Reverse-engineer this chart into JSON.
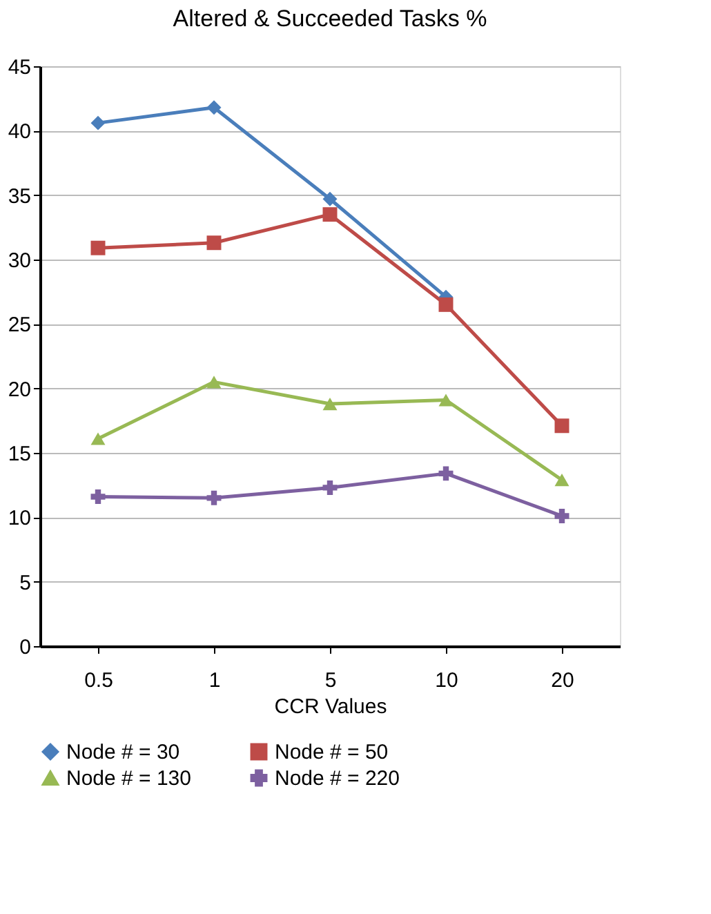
{
  "chart_data": {
    "type": "line",
    "title": "Altered & Succeeded Tasks %",
    "xlabel": "CCR Values",
    "categories": [
      "0.5",
      "1",
      "5",
      "10",
      "20"
    ],
    "series": [
      {
        "name": "Node # = 30",
        "color": "#4a7ebb",
        "marker": "diamond",
        "values": [
          40.6,
          41.8,
          34.7,
          27.1,
          null
        ]
      },
      {
        "name": "Node # = 50",
        "color": "#be4b48",
        "marker": "square",
        "values": [
          30.9,
          31.3,
          33.5,
          26.5,
          17.1
        ]
      },
      {
        "name": "Node # = 130",
        "color": "#98b954",
        "marker": "triangle",
        "values": [
          16.1,
          20.5,
          18.8,
          19.1,
          12.9
        ]
      },
      {
        "name": "Node # = 220",
        "color": "#7d60a0",
        "marker": "cross",
        "values": [
          11.6,
          11.5,
          12.3,
          13.4,
          10.1
        ]
      }
    ],
    "ylim": [
      0,
      45
    ],
    "yticks": [
      0,
      5,
      10,
      15,
      20,
      25,
      30,
      35,
      40,
      45
    ],
    "grid": "y",
    "legend": "bottom",
    "line_style": "solid"
  }
}
